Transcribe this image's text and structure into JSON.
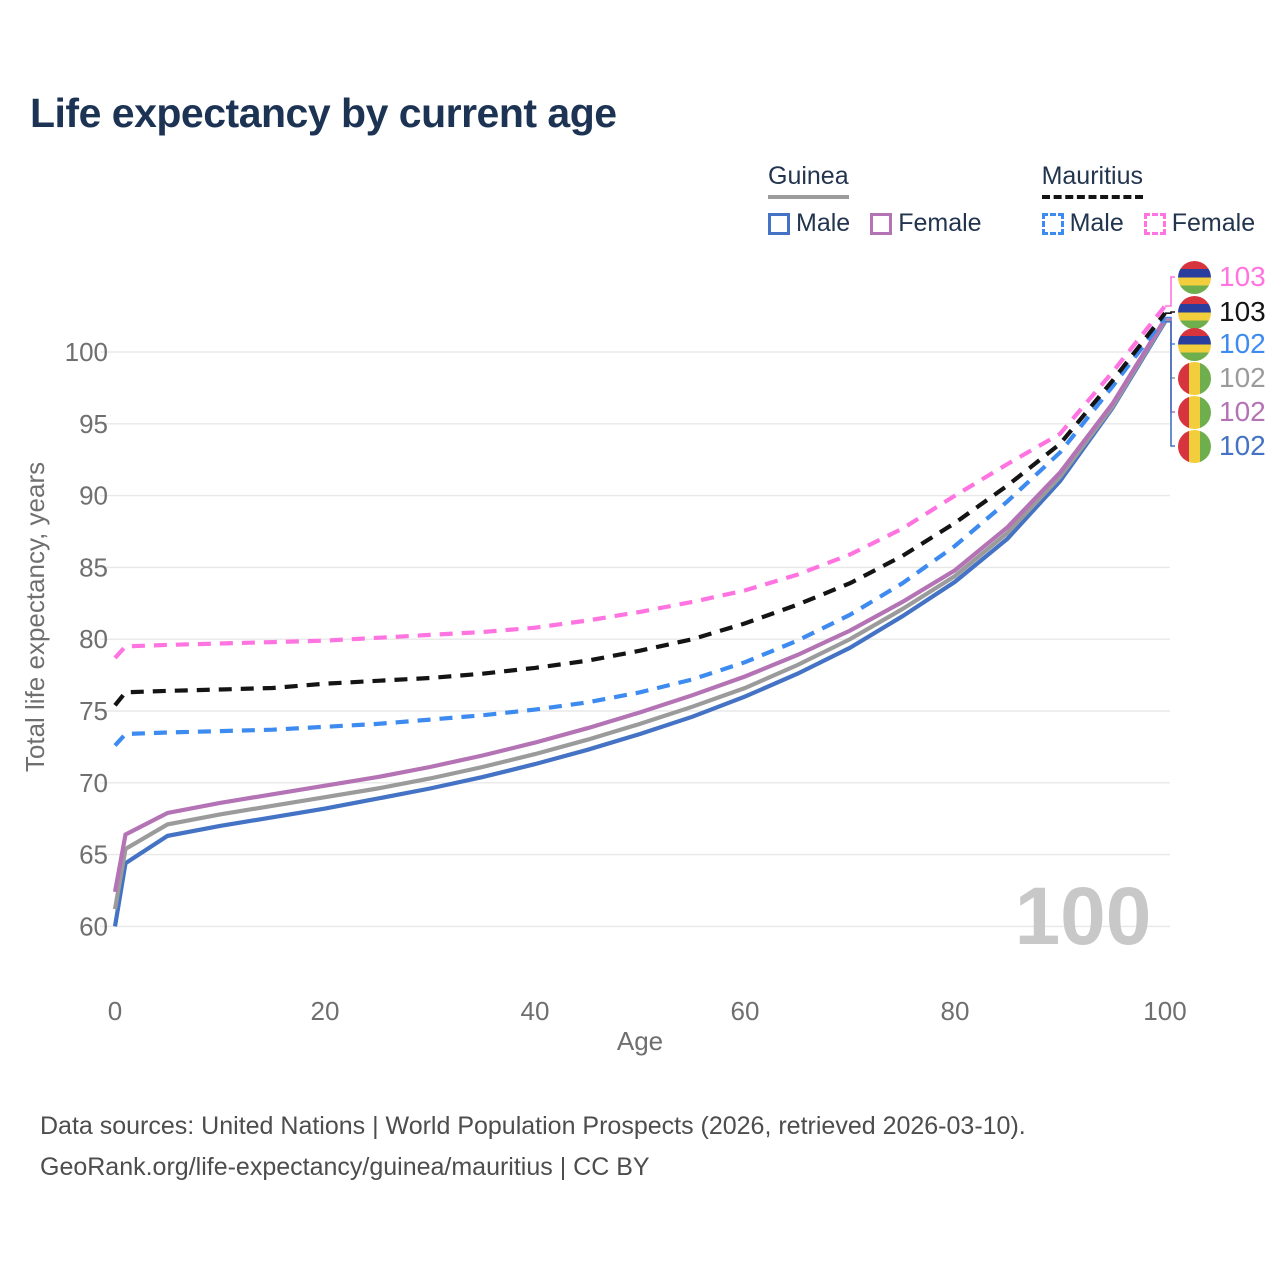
{
  "title": "Life expectancy by current age",
  "legend": {
    "groups": [
      {
        "name": "Guinea",
        "line_color": "#9b9b9b",
        "line_style": "solid",
        "items": [
          {
            "label": "Male",
            "color": "#4472c4",
            "dashed": false
          },
          {
            "label": "Female",
            "color": "#b473b4",
            "dashed": false
          }
        ]
      },
      {
        "name": "Mauritius",
        "line_color": "#141414",
        "line_style": "dashed",
        "items": [
          {
            "label": "Male",
            "color": "#3d8bf0",
            "dashed": true
          },
          {
            "label": "Female",
            "color": "#ff74e0",
            "dashed": true
          }
        ]
      }
    ]
  },
  "watermark": "100",
  "footer": {
    "line1": "Data sources: United Nations | World Population Prospects (2026, retrieved 2026-03-10).",
    "line2": "GeoRank.org/life-expectancy/guinea/mauritius | CC BY"
  },
  "chart_data": {
    "type": "line",
    "title": "Life expectancy by current age",
    "xlabel": "Age",
    "ylabel": "Total life expectancy, years",
    "xlim": [
      0,
      100
    ],
    "ylim": [
      58,
      104.5
    ],
    "xticks": [
      0,
      20,
      40,
      60,
      80,
      100
    ],
    "yticks": [
      60,
      65,
      70,
      75,
      80,
      85,
      90,
      95,
      100
    ],
    "grid": "horizontal",
    "x": [
      0,
      1,
      5,
      10,
      15,
      20,
      25,
      30,
      35,
      40,
      45,
      50,
      55,
      60,
      65,
      70,
      75,
      80,
      85,
      90,
      95,
      100
    ],
    "series": [
      {
        "id": "guinea-male",
        "name": "Guinea Male",
        "color": "#4472c4",
        "dashed": false,
        "end_label": "102",
        "values": [
          60.0,
          64.4,
          66.3,
          67.0,
          67.6,
          68.2,
          68.9,
          69.6,
          70.4,
          71.3,
          72.3,
          73.4,
          74.6,
          76.0,
          77.6,
          79.4,
          81.6,
          84.0,
          87.0,
          91.0,
          96.1,
          102.1
        ]
      },
      {
        "id": "guinea-both",
        "name": "Guinea",
        "color": "#9b9b9b",
        "dashed": false,
        "end_label": "102",
        "values": [
          61.2,
          65.4,
          67.1,
          67.8,
          68.4,
          69.0,
          69.6,
          70.3,
          71.1,
          72.0,
          73.0,
          74.1,
          75.3,
          76.6,
          78.2,
          80.0,
          82.1,
          84.4,
          87.4,
          91.3,
          96.2,
          102.2
        ]
      },
      {
        "id": "guinea-female",
        "name": "Guinea Female",
        "color": "#b473b4",
        "dashed": false,
        "end_label": "102",
        "values": [
          62.4,
          66.4,
          67.9,
          68.6,
          69.2,
          69.8,
          70.4,
          71.1,
          71.9,
          72.8,
          73.8,
          74.9,
          76.1,
          77.4,
          78.9,
          80.6,
          82.6,
          84.8,
          87.8,
          91.6,
          96.4,
          102.3
        ]
      },
      {
        "id": "mauritius-male",
        "name": "Mauritius Male",
        "color": "#3d8bf0",
        "dashed": true,
        "end_label": "102",
        "values": [
          72.6,
          73.4,
          73.5,
          73.6,
          73.7,
          73.9,
          74.1,
          74.4,
          74.7,
          75.1,
          75.6,
          76.3,
          77.2,
          78.4,
          79.9,
          81.7,
          83.9,
          86.5,
          89.6,
          93.0,
          97.6,
          102.4
        ]
      },
      {
        "id": "mauritius-both",
        "name": "Mauritius",
        "color": "#141414",
        "dashed": true,
        "end_label": "103",
        "values": [
          75.4,
          76.3,
          76.4,
          76.5,
          76.6,
          76.9,
          77.1,
          77.3,
          77.6,
          78.0,
          78.5,
          79.2,
          80.0,
          81.1,
          82.4,
          83.9,
          85.8,
          88.1,
          90.7,
          93.6,
          98.0,
          102.7
        ]
      },
      {
        "id": "mauritius-female",
        "name": "Mauritius Female",
        "color": "#ff74e0",
        "dashed": true,
        "end_label": "103",
        "values": [
          78.7,
          79.5,
          79.6,
          79.7,
          79.8,
          79.9,
          80.1,
          80.3,
          80.5,
          80.8,
          81.3,
          81.9,
          82.6,
          83.4,
          84.5,
          85.9,
          87.7,
          90.0,
          92.2,
          94.3,
          98.6,
          103.2
        ]
      }
    ],
    "end_labels": [
      {
        "value": "103",
        "flag": "mauritius",
        "series": "mauritius-female",
        "color": "#ff74e0"
      },
      {
        "value": "103",
        "flag": "mauritius",
        "series": "mauritius-both",
        "color": "#141414"
      },
      {
        "value": "102",
        "flag": "mauritius",
        "series": "mauritius-male",
        "color": "#3d8bf0"
      },
      {
        "value": "102",
        "flag": "guinea",
        "series": "guinea-both",
        "color": "#9b9b9b"
      },
      {
        "value": "102",
        "flag": "guinea",
        "series": "guinea-female",
        "color": "#b473b4"
      },
      {
        "value": "102",
        "flag": "guinea",
        "series": "guinea-male",
        "color": "#4472c4"
      }
    ]
  }
}
